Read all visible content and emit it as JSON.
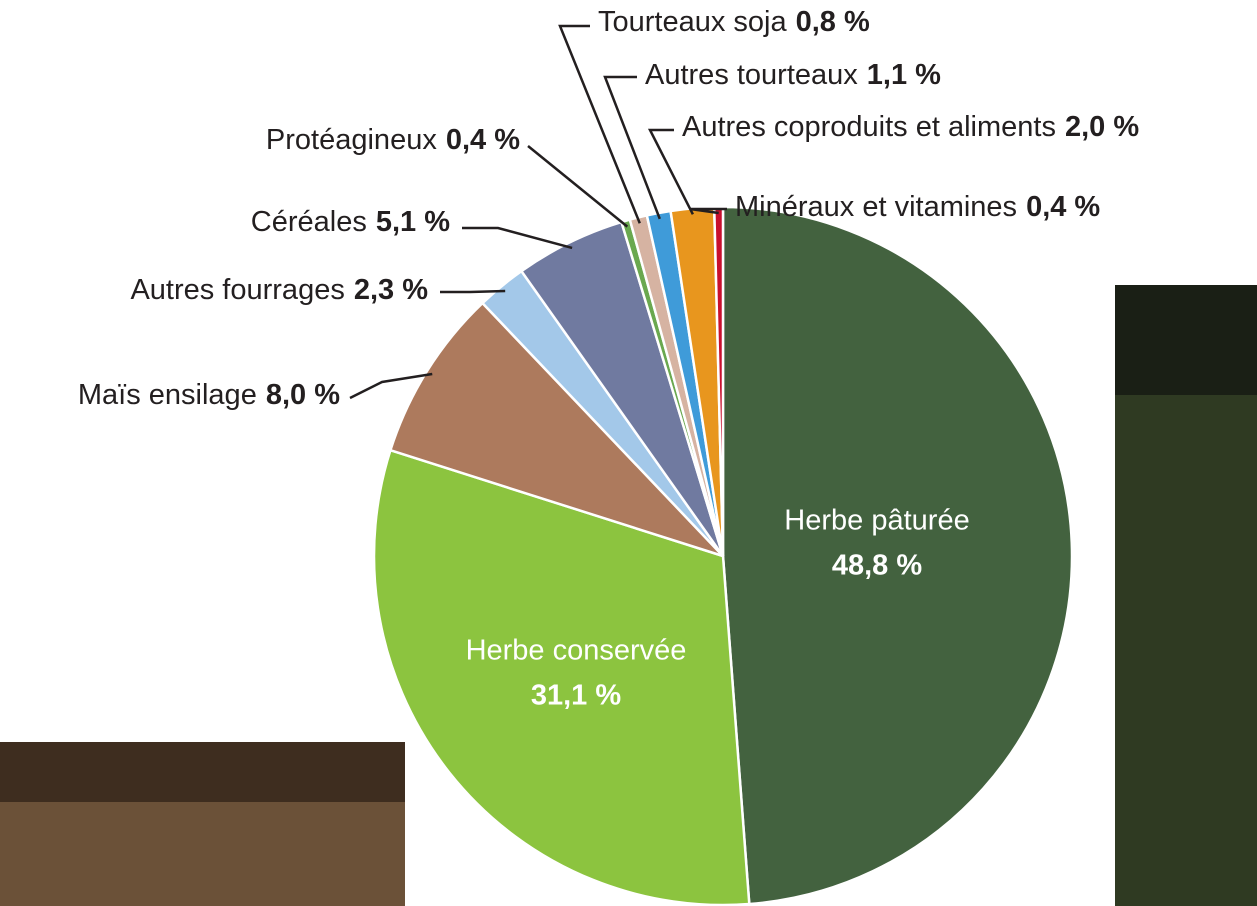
{
  "chart_data": {
    "type": "pie",
    "categories": [
      "Herbe pâturée",
      "Herbe conservée",
      "Maïs ensilage",
      "Autres fourrages",
      "Céréales",
      "Protéagineux",
      "Tourteaux soja",
      "Autres tourteaux",
      "Autres coproduits et aliments",
      "Minéraux et vitamines"
    ],
    "values": [
      48.8,
      31.1,
      8.0,
      2.3,
      5.1,
      0.4,
      0.8,
      1.1,
      2.0,
      0.4
    ],
    "value_labels": [
      "48,8 %",
      "31,1 %",
      "8,0 %",
      "2,3 %",
      "5,1 %",
      "0,4 %",
      "0,8 %",
      "1,1 %",
      "2,0 %",
      "0,4 %"
    ],
    "colors": [
      "#43623f",
      "#8cc43f",
      "#ad7a5d",
      "#a3c8e9",
      "#707aa0",
      "#6aa84f",
      "#d6b3a2",
      "#3f9bd9",
      "#e8961e",
      "#c8102e"
    ]
  }
}
